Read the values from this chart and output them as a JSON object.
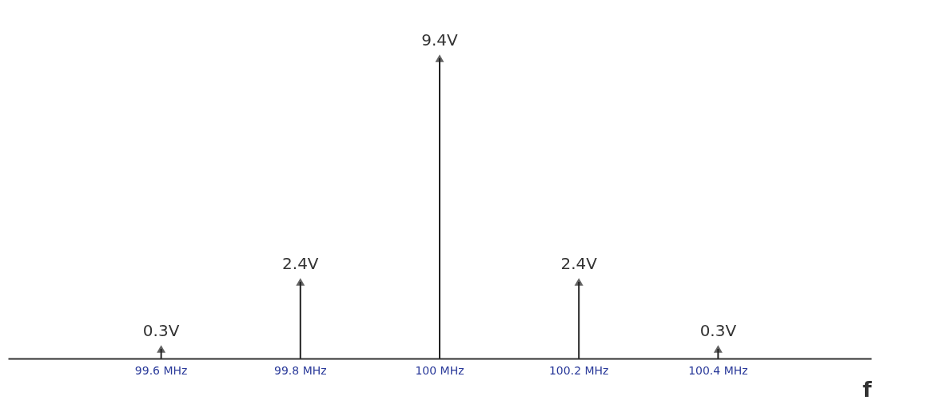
{
  "chart_data": {
    "type": "lollipop",
    "xlabel": "f",
    "categories": [
      "99.6 MHz",
      "99.8 MHz",
      "100 MHz",
      "100.2 MHz",
      "100.4 MHz"
    ],
    "values": [
      0.3,
      2.4,
      9.4,
      2.4,
      0.3
    ],
    "value_labels": [
      "0.3V",
      "2.4V",
      "9.4V",
      "2.4V",
      "0.3V"
    ],
    "color": "#222222",
    "marker": "triangle"
  }
}
